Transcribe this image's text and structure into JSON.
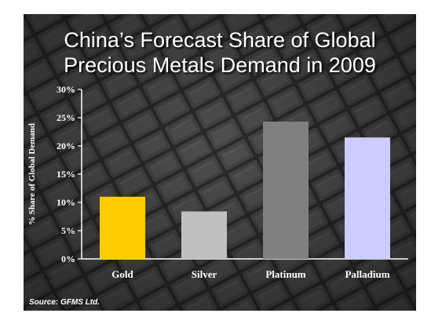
{
  "title_line1": "China’s Forecast Share of Global",
  "title_line2": "Precious Metals Demand in 2009",
  "source": "Source: GFMS Ltd.",
  "chart_data": {
    "type": "bar",
    "title": "China’s Forecast Share of Global Precious Metals Demand in 2009",
    "ylabel": "% Share of Global Demand",
    "xlabel": "",
    "ylim": [
      0,
      30
    ],
    "yticks": [
      "0%",
      "5%",
      "10%",
      "15%",
      "20%",
      "25%",
      "30%"
    ],
    "categories": [
      "Gold",
      "Silver",
      "Platinum",
      "Palladium"
    ],
    "values": [
      11,
      8.4,
      24.3,
      21.5
    ],
    "colors": [
      "#ffcc00",
      "#c0c0c0",
      "#808080",
      "#ccccff"
    ],
    "grid": false,
    "legend": "none"
  }
}
